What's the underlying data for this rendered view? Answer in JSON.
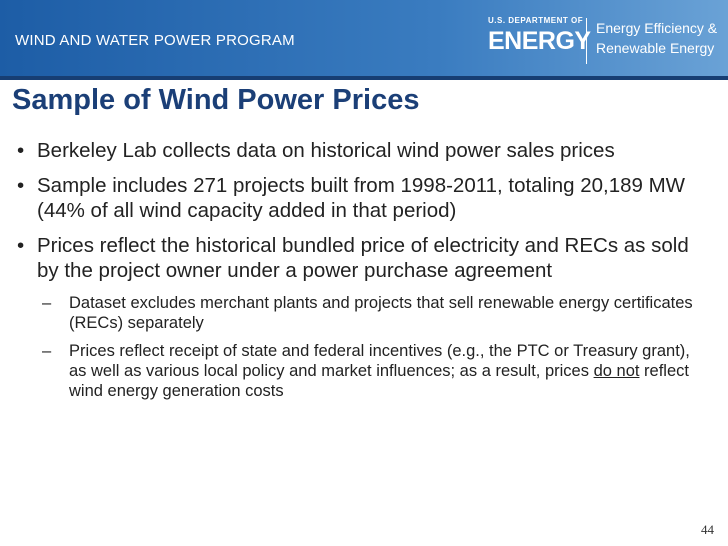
{
  "header": {
    "program": "WIND AND WATER POWER PROGRAM",
    "logo": {
      "department": "U.S. DEPARTMENT OF",
      "agency": "ENERGY",
      "office_line1": "Energy Efficiency &",
      "office_line2": "Renewable Energy"
    }
  },
  "title": "Sample of Wind Power Prices",
  "bullets": [
    {
      "text": "Berkeley Lab collects data on historical wind power sales prices"
    },
    {
      "text": "Sample includes 271 projects built from 1998-2011, totaling 20,189 MW (44% of all wind capacity added in that period)"
    },
    {
      "text": "Prices reflect the historical bundled price of electricity and RECs as sold by the project owner under a power purchase agreement",
      "sub_bullets": [
        {
          "text": "Dataset excludes merchant plants and projects that sell renewable energy certificates (RECs) separately"
        },
        {
          "text_before": "Prices reflect receipt of state and federal incentives (e.g., the PTC or Treasury grant), as well as various local policy and market influences; as a result, prices ",
          "underlined": "do not",
          "text_after": " reflect wind energy generation costs"
        }
      ]
    }
  ],
  "page_number": "44"
}
